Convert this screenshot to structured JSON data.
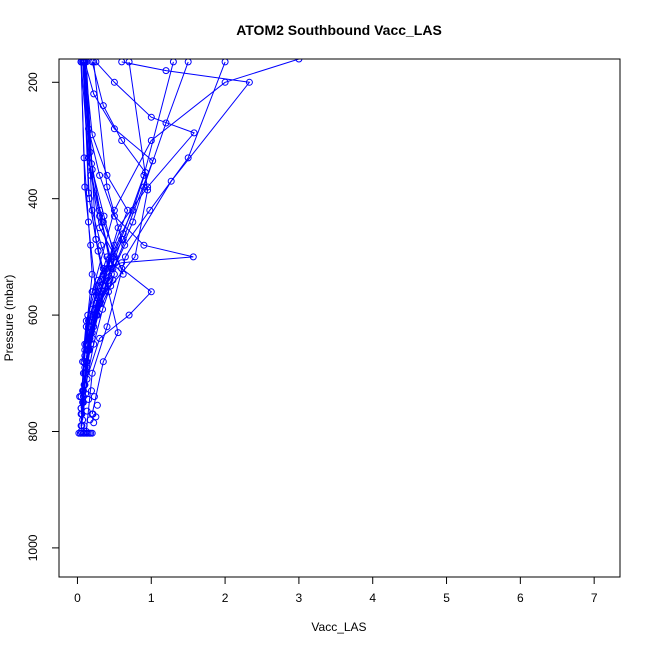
{
  "chart_data": {
    "type": "line",
    "title": "ATOM2 Southbound Vacc_LAS",
    "xlabel": "Vacc_LAS",
    "ylabel": "Pressure (mbar)",
    "xlim": [
      -0.25,
      7.35
    ],
    "ylim": [
      1050,
      160
    ],
    "y_reversed": true,
    "x_ticks": [
      0,
      1,
      2,
      3,
      4,
      5,
      6,
      7
    ],
    "y_ticks": [
      200,
      400,
      600,
      800,
      1000
    ],
    "grid": false,
    "legend": "none",
    "series_color": "#0000ff",
    "markers": "open-circle",
    "series": [
      {
        "x": [
          0.05,
          0.08,
          0.12,
          0.2,
          0.35,
          0.6,
          1.57,
          0.9,
          0.5,
          0.3,
          0.15,
          0.1
        ],
        "y": [
          770,
          700,
          620,
          560,
          520,
          510,
          500,
          480,
          430,
          360,
          280,
          165
        ]
      },
      {
        "x": [
          0.1,
          0.3,
          0.7,
          1.0,
          0.6,
          0.3,
          0.15,
          0.05
        ],
        "y": [
          720,
          640,
          600,
          560,
          520,
          450,
          330,
          165
        ]
      },
      {
        "x": [
          0.08,
          0.15,
          0.3,
          0.55,
          0.95,
          1.58,
          1.0,
          0.5,
          0.25
        ],
        "y": [
          730,
          660,
          560,
          450,
          380,
          287,
          260,
          200,
          165
        ]
      },
      {
        "x": [
          0.12,
          0.2,
          0.4,
          0.65,
          1.27,
          2.33,
          1.2,
          0.6
        ],
        "y": [
          800,
          700,
          620,
          500,
          370,
          200,
          180,
          165
        ]
      },
      {
        "x": [
          0.05,
          0.1,
          0.2,
          0.5,
          1.0,
          2.0,
          3.0
        ],
        "y": [
          760,
          650,
          560,
          420,
          300,
          200,
          160
        ]
      },
      {
        "x": [
          0.1,
          0.15,
          0.25,
          0.45,
          0.75,
          0.92,
          0.6,
          0.35,
          0.2
        ],
        "y": [
          700,
          640,
          580,
          500,
          420,
          355,
          300,
          240,
          165
        ]
      },
      {
        "x": [
          0.07,
          0.12,
          0.28,
          0.62,
          1.02,
          0.5,
          0.22,
          0.1
        ],
        "y": [
          680,
          610,
          540,
          470,
          335,
          280,
          220,
          165
        ]
      },
      {
        "x": [
          0.1,
          0.2,
          0.35,
          0.5,
          0.68,
          0.4,
          0.2,
          0.1
        ],
        "y": [
          660,
          590,
          530,
          480,
          420,
          360,
          290,
          165
        ]
      },
      {
        "x": [
          0.06,
          0.1,
          0.18,
          0.3,
          0.52,
          0.75,
          0.9,
          1.2,
          1.5
        ],
        "y": [
          790,
          720,
          650,
          580,
          510,
          440,
          380,
          270,
          165
        ]
      },
      {
        "x": [
          0.15,
          0.25,
          0.4,
          0.62,
          0.35,
          0.18,
          0.08
        ],
        "y": [
          620,
          560,
          500,
          530,
          440,
          360,
          165
        ]
      },
      {
        "x": [
          0.05,
          0.09,
          0.15,
          0.28,
          0.48,
          0.3,
          0.15,
          0.07
        ],
        "y": [
          740,
          680,
          610,
          550,
          520,
          430,
          330,
          165
        ]
      },
      {
        "x": [
          0.2,
          0.35,
          0.55,
          0.42,
          0.25,
          0.12
        ],
        "y": [
          770,
          680,
          630,
          560,
          470,
          165
        ]
      },
      {
        "x": [
          0.08,
          0.14,
          0.26,
          0.45,
          0.78,
          0.95,
          0.7
        ],
        "y": [
          730,
          660,
          600,
          550,
          500,
          385,
          165
        ]
      },
      {
        "x": [
          0.1,
          0.18,
          0.3,
          0.48,
          0.32,
          0.2,
          0.1
        ],
        "y": [
          690,
          630,
          580,
          540,
          480,
          420,
          165
        ]
      },
      {
        "x": [
          0.05,
          0.08,
          0.12,
          0.18,
          0.25,
          0.18,
          0.1,
          0.05
        ],
        "y": [
          800,
          740,
          680,
          620,
          560,
          480,
          380,
          165
        ]
      },
      {
        "x": [
          0.12,
          0.22,
          0.38,
          0.28,
          0.16,
          0.08
        ],
        "y": [
          650,
          600,
          550,
          490,
          400,
          165
        ]
      },
      {
        "x": [
          0.06,
          0.1,
          0.17,
          0.26,
          0.4,
          0.62,
          0.9,
          1.3
        ],
        "y": [
          770,
          700,
          640,
          580,
          520,
          460,
          360,
          165
        ]
      },
      {
        "x": [
          0.09,
          0.15,
          0.24,
          0.36,
          0.25,
          0.15,
          0.08
        ],
        "y": [
          720,
          660,
          600,
          540,
          470,
          390,
          165
        ]
      },
      {
        "x": [
          0.07,
          0.13,
          0.22,
          0.34,
          0.5,
          0.33,
          0.19,
          0.1
        ],
        "y": [
          780,
          710,
          650,
          590,
          530,
          440,
          340,
          165
        ]
      },
      {
        "x": [
          0.11,
          0.2,
          0.32,
          0.46,
          0.6,
          0.4,
          0.22
        ],
        "y": [
          700,
          640,
          580,
          520,
          470,
          380,
          165
        ]
      },
      {
        "x": [
          0.05,
          0.07,
          0.1,
          0.14,
          0.2,
          0.15,
          0.09,
          0.05
        ],
        "y": [
          790,
          730,
          670,
          600,
          530,
          440,
          330,
          165
        ]
      },
      {
        "x": [
          0.1,
          0.16,
          0.27,
          0.42,
          0.64,
          0.98,
          1.5,
          2.0
        ],
        "y": [
          720,
          660,
          600,
          540,
          480,
          420,
          330,
          165
        ]
      },
      {
        "x": [
          0.08,
          0.12,
          0.2,
          0.3,
          0.44,
          0.3,
          0.17,
          0.09
        ],
        "y": [
          750,
          690,
          630,
          570,
          510,
          420,
          320,
          165
        ]
      },
      {
        "x": [
          0.13,
          0.22,
          0.35,
          0.5,
          0.36,
          0.2,
          0.1
        ],
        "y": [
          680,
          620,
          560,
          500,
          430,
          350,
          165
        ]
      }
    ],
    "surface_points": {
      "x": [
        0.02,
        0.04,
        0.06,
        0.08,
        0.1,
        0.12,
        0.14,
        0.16,
        0.18,
        0.2,
        0.22,
        0.25,
        0.05,
        0.09,
        0.13,
        0.17,
        0.21,
        0.03,
        0.07,
        0.11,
        0.15,
        0.19,
        0.23,
        0.27
      ],
      "y": [
        803,
        803,
        803,
        803,
        803,
        803,
        803,
        803,
        803,
        803,
        785,
        775,
        760,
        790,
        765,
        780,
        770,
        740,
        750,
        735,
        745,
        730,
        740,
        755
      ]
    }
  }
}
